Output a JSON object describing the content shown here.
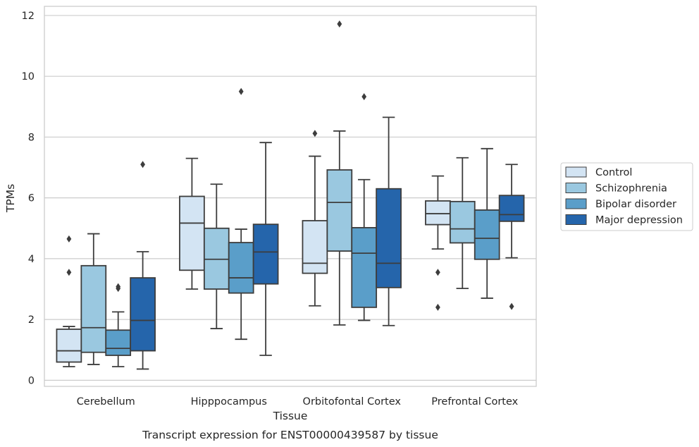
{
  "caption": "Transcript expression for ENST00000439587 by tissue",
  "chart_data": {
    "type": "box",
    "title": "",
    "xlabel": "Tissue",
    "ylabel": "TPMs",
    "ylim": [
      -0.2,
      12.3
    ],
    "yticks": [
      0,
      2,
      4,
      6,
      8,
      10,
      12
    ],
    "grid": true,
    "legend_position": "right, outside",
    "categories": [
      "Cerebellum",
      "Hipppocampus",
      "Orbitofontal Cortex",
      "Prefrontal Cortex"
    ],
    "series": [
      {
        "name": "Control",
        "color": "#d3e4f3",
        "boxes": [
          {
            "whisker_low": 0.45,
            "q1": 0.6,
            "median": 0.97,
            "q3": 1.68,
            "whisker_high": 1.77,
            "outliers": [
              4.65,
              3.55
            ]
          },
          {
            "whisker_low": 3.0,
            "q1": 3.62,
            "median": 5.17,
            "q3": 6.05,
            "whisker_high": 7.3,
            "outliers": []
          },
          {
            "whisker_low": 2.45,
            "q1": 3.52,
            "median": 3.85,
            "q3": 5.25,
            "whisker_high": 7.37,
            "outliers": [
              8.12
            ]
          },
          {
            "whisker_low": 4.32,
            "q1": 5.12,
            "median": 5.48,
            "q3": 5.9,
            "whisker_high": 6.72,
            "outliers": [
              3.55,
              2.4
            ]
          }
        ]
      },
      {
        "name": "Schizophrenia",
        "color": "#9ac8e0",
        "boxes": [
          {
            "whisker_low": 0.52,
            "q1": 0.92,
            "median": 1.73,
            "q3": 3.77,
            "whisker_high": 4.82,
            "outliers": []
          },
          {
            "whisker_low": 1.7,
            "q1": 3.0,
            "median": 3.98,
            "q3": 5.0,
            "whisker_high": 6.45,
            "outliers": []
          },
          {
            "whisker_low": 1.82,
            "q1": 4.25,
            "median": 5.85,
            "q3": 6.92,
            "whisker_high": 8.2,
            "outliers": [
              11.72
            ]
          },
          {
            "whisker_low": 3.02,
            "q1": 4.52,
            "median": 4.98,
            "q3": 5.88,
            "whisker_high": 7.32,
            "outliers": []
          }
        ]
      },
      {
        "name": "Bipolar disorder",
        "color": "#5a9ec9",
        "boxes": [
          {
            "whisker_low": 0.45,
            "q1": 0.82,
            "median": 1.05,
            "q3": 1.65,
            "whisker_high": 2.25,
            "outliers": [
              3.08,
              3.02
            ]
          },
          {
            "whisker_low": 1.35,
            "q1": 2.87,
            "median": 3.37,
            "q3": 4.53,
            "whisker_high": 4.97,
            "outliers": [
              9.5
            ]
          },
          {
            "whisker_low": 1.97,
            "q1": 2.4,
            "median": 4.18,
            "q3": 5.02,
            "whisker_high": 6.6,
            "outliers": [
              9.33
            ]
          },
          {
            "whisker_low": 2.7,
            "q1": 3.98,
            "median": 4.67,
            "q3": 5.6,
            "whisker_high": 7.62,
            "outliers": []
          }
        ]
      },
      {
        "name": "Major depression",
        "color": "#2565ab",
        "boxes": [
          {
            "whisker_low": 0.37,
            "q1": 0.97,
            "median": 1.97,
            "q3": 3.37,
            "whisker_high": 4.23,
            "outliers": [
              7.1
            ]
          },
          {
            "whisker_low": 0.82,
            "q1": 3.17,
            "median": 4.22,
            "q3": 5.13,
            "whisker_high": 7.82,
            "outliers": []
          },
          {
            "whisker_low": 1.8,
            "q1": 3.05,
            "median": 3.85,
            "q3": 6.3,
            "whisker_high": 8.65,
            "outliers": []
          },
          {
            "whisker_low": 4.03,
            "q1": 5.23,
            "median": 5.45,
            "q3": 6.08,
            "whisker_high": 7.1,
            "outliers": [
              2.43
            ]
          }
        ]
      }
    ]
  }
}
